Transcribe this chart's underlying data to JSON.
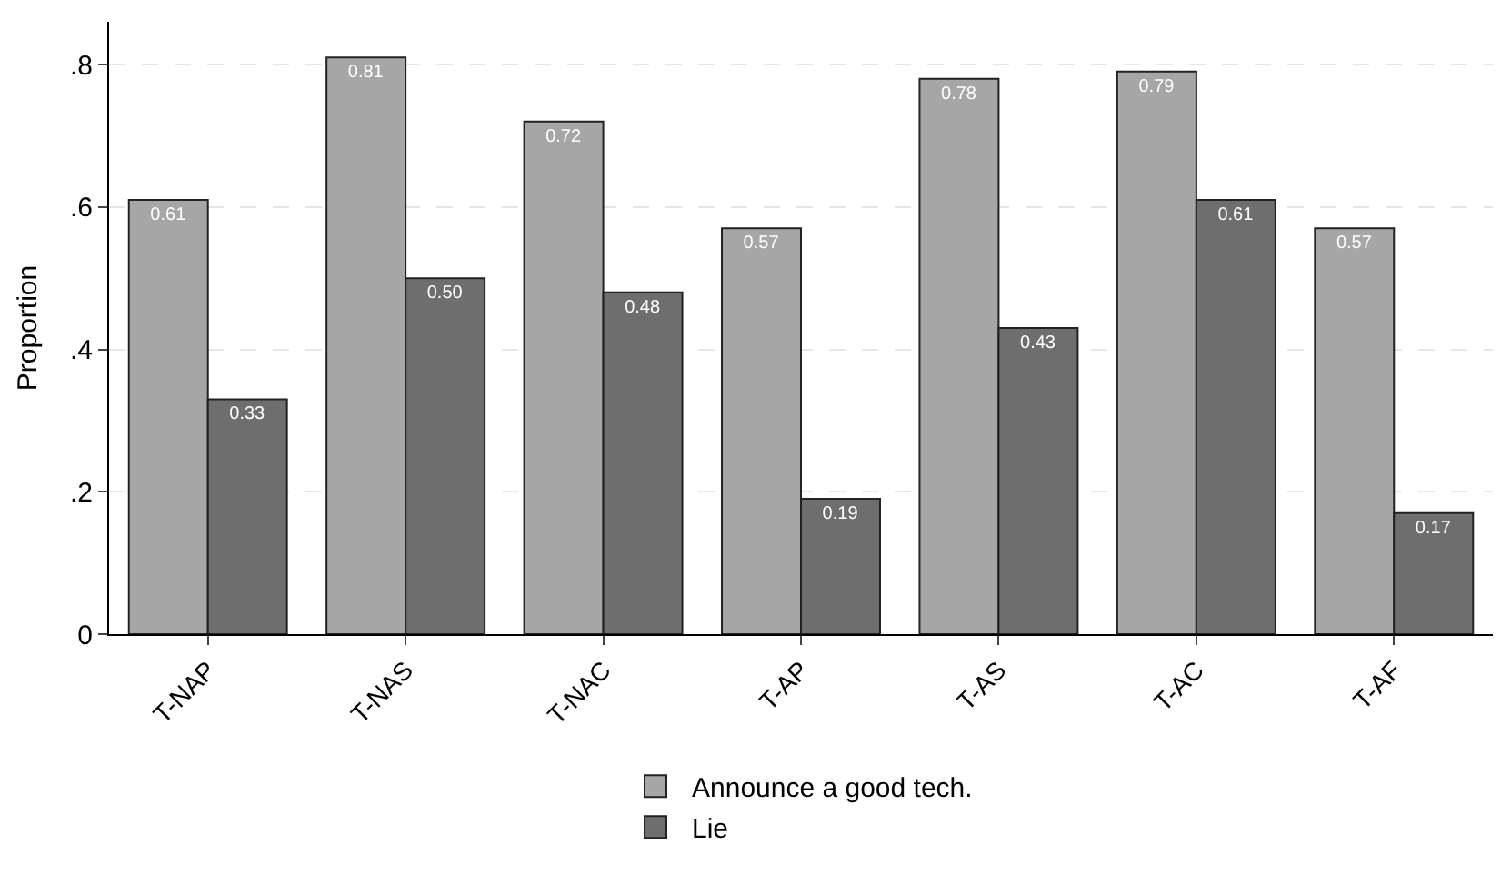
{
  "chart_data": {
    "type": "bar",
    "ylabel": "Proportion",
    "categories": [
      "T-NAP",
      "T-NAS",
      "T-NAC",
      "T-AP",
      "T-AS",
      "T-AC",
      "T-AF"
    ],
    "series": [
      {
        "name": "Announce a good tech.",
        "color": "#a6a6a6",
        "values": [
          0.61,
          0.81,
          0.72,
          0.57,
          0.78,
          0.79,
          0.57
        ],
        "value_labels": [
          "0.61",
          "0.81",
          "0.72",
          "0.57",
          "0.78",
          "0.79",
          "0.57"
        ]
      },
      {
        "name": "Lie",
        "color": "#6e6e6e",
        "values": [
          0.33,
          0.5,
          0.48,
          0.19,
          0.43,
          0.61,
          0.17
        ],
        "value_labels": [
          "0.33",
          "0.50",
          "0.48",
          "0.19",
          "0.43",
          "0.61",
          "0.17"
        ]
      }
    ],
    "ylim": [
      0,
      0.86
    ],
    "yticks": [
      0,
      {
        "value": 0.2,
        "label": ".2"
      },
      {
        "value": 0.4,
        "label": ".4"
      },
      {
        "value": 0.6,
        "label": ".6"
      },
      {
        "value": 0.8,
        "label": ".8"
      }
    ],
    "grid": "y",
    "legend": "bottom"
  }
}
